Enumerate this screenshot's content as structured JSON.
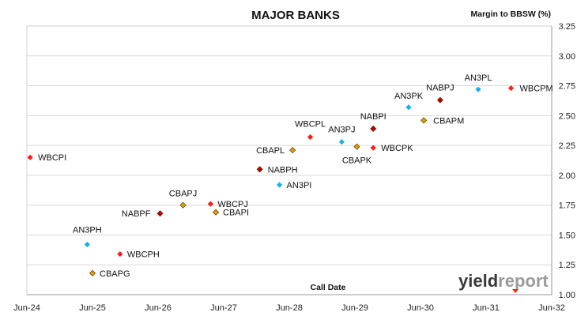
{
  "chart_data": {
    "type": "scatter",
    "title": "MAJOR BANKS",
    "xlabel": "Call Date",
    "ylabel": "Margin to BBSW (%)",
    "x_ticks": [
      "Jun-24",
      "Jun-25",
      "Jun-26",
      "Jun-27",
      "Jun-28",
      "Jun-29",
      "Jun-30",
      "Jun-31",
      "Jun-32"
    ],
    "xlim": [
      2024.5,
      2032.5
    ],
    "ylim": [
      1.0,
      3.25
    ],
    "y_ticks": [
      "1.00",
      "1.25",
      "1.50",
      "1.75",
      "2.00",
      "2.25",
      "2.50",
      "2.75",
      "3.00",
      "3.25"
    ],
    "grid": "horizontal",
    "legend": "none",
    "colors": {
      "WBC": "#ff1a1a",
      "CBA": "#e0a000",
      "NAB": "#c00000",
      "ANZ": "#1ab0e8"
    },
    "points": [
      {
        "label": "WBCPI",
        "x": 2024.55,
        "y": 2.15,
        "bank": "WBC"
      },
      {
        "label": "AN3PH",
        "x": 2025.42,
        "y": 1.42,
        "bank": "ANZ"
      },
      {
        "label": "CBAPG",
        "x": 2025.5,
        "y": 1.18,
        "bank": "CBA"
      },
      {
        "label": "WBCPH",
        "x": 2025.92,
        "y": 1.34,
        "bank": "WBC"
      },
      {
        "label": "NABPF",
        "x": 2026.53,
        "y": 1.68,
        "bank": "NAB"
      },
      {
        "label": "CBAPJ",
        "x": 2026.88,
        "y": 1.75,
        "bank": "CBA"
      },
      {
        "label": "WBCPJ",
        "x": 2027.3,
        "y": 1.76,
        "bank": "WBC"
      },
      {
        "label": "CBAPI",
        "x": 2027.38,
        "y": 1.69,
        "bank": "CBA"
      },
      {
        "label": "NABPH",
        "x": 2028.05,
        "y": 2.05,
        "bank": "NAB"
      },
      {
        "label": "AN3PI",
        "x": 2028.35,
        "y": 1.92,
        "bank": "ANZ"
      },
      {
        "label": "CBAPL",
        "x": 2028.55,
        "y": 2.21,
        "bank": "CBA"
      },
      {
        "label": "WBCPL",
        "x": 2028.82,
        "y": 2.32,
        "bank": "WBC"
      },
      {
        "label": "AN3PJ",
        "x": 2029.3,
        "y": 2.28,
        "bank": "ANZ"
      },
      {
        "label": "CBAPK",
        "x": 2029.53,
        "y": 2.24,
        "bank": "CBA"
      },
      {
        "label": "NABPI",
        "x": 2029.78,
        "y": 2.39,
        "bank": "NAB"
      },
      {
        "label": "WBCPK",
        "x": 2029.78,
        "y": 2.23,
        "bank": "WBC"
      },
      {
        "label": "AN3PK",
        "x": 2030.32,
        "y": 2.57,
        "bank": "ANZ"
      },
      {
        "label": "CBAPM",
        "x": 2030.55,
        "y": 2.46,
        "bank": "CBA"
      },
      {
        "label": "NABPJ",
        "x": 2030.8,
        "y": 2.63,
        "bank": "NAB"
      },
      {
        "label": "AN3PL",
        "x": 2031.38,
        "y": 2.72,
        "bank": "ANZ"
      },
      {
        "label": "WBCPM",
        "x": 2031.88,
        "y": 2.73,
        "bank": "WBC"
      }
    ]
  },
  "logo": {
    "part1": "yield",
    "part2": "report"
  }
}
